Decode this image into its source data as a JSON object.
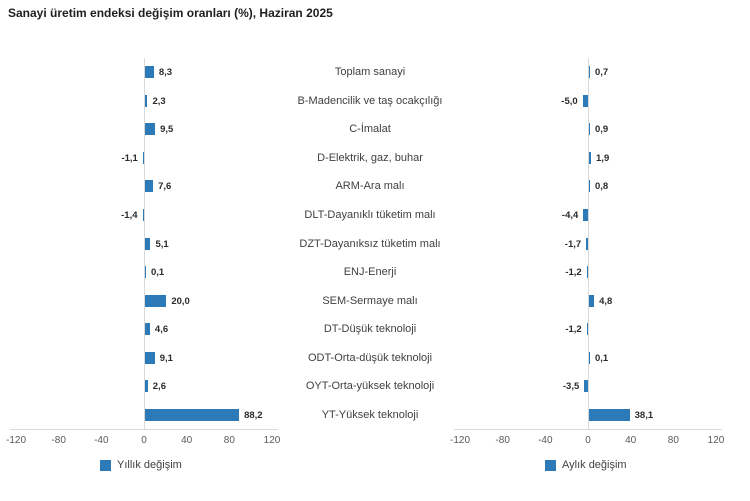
{
  "title": "Sanayi üretim endeksi değişim oranları (%), Haziran 2025",
  "colors": {
    "bar": "#2d7ab9",
    "axis_line": "#d9d9d9",
    "tick_label": "#595959",
    "value_label": "#2b2b2b",
    "category_label": "#404040",
    "title": "#1f1f1f",
    "background": "#ffffff"
  },
  "chart_data": {
    "type": "bar",
    "orientation": "horizontal",
    "title": "Sanayi üretim endeksi değişim oranları (%), Haziran 2025",
    "categories": [
      "Toplam sanayi",
      "B-Madencilik ve taş ocakçılığı",
      "C-İmalat",
      "D-Elektrik, gaz, buhar",
      "ARM-Ara malı",
      "DLT-Dayanıklı tüketim malı",
      "DZT-Dayanıksız tüketim malı",
      "ENJ-Enerji",
      "SEM-Sermaye malı",
      "DT-Düşük teknoloji",
      "ODT-Orta-düşük teknoloji",
      "OYT-Orta-yüksek teknoloji",
      "YT-Yüksek teknoloji"
    ],
    "series": [
      {
        "name": "Yıllık değişim",
        "panel": "left",
        "values": [
          8.3,
          2.3,
          9.5,
          -1.1,
          7.6,
          -1.4,
          5.1,
          0.1,
          20.0,
          4.6,
          9.1,
          2.6,
          88.2
        ],
        "labels": [
          "8,3",
          "2,3",
          "9,5",
          "-1,1",
          "7,6",
          "-1,4",
          "5,1",
          "0,1",
          "20,0",
          "4,6",
          "9,1",
          "2,6",
          "88,2"
        ]
      },
      {
        "name": "Aylık değişim",
        "panel": "right",
        "values": [
          0.7,
          -5.0,
          0.9,
          1.9,
          0.8,
          -4.4,
          -1.7,
          -1.2,
          4.8,
          -1.2,
          0.1,
          -3.5,
          38.1
        ],
        "labels": [
          "0,7",
          "-5,0",
          "0,9",
          "1,9",
          "0,8",
          "-4,4",
          "-1,7",
          "-1,2",
          "4,8",
          "-1,2",
          "0,1",
          "-3,5",
          "38,1"
        ]
      }
    ],
    "xlim": [
      -120,
      120
    ],
    "xticks": [
      -120,
      -80,
      -40,
      0,
      40,
      80,
      120
    ],
    "xtick_labels": [
      "-120",
      "-80",
      "-40",
      "0",
      "40",
      "80",
      "120"
    ],
    "grid": "zero-line-only",
    "legend_position": "bottom"
  }
}
